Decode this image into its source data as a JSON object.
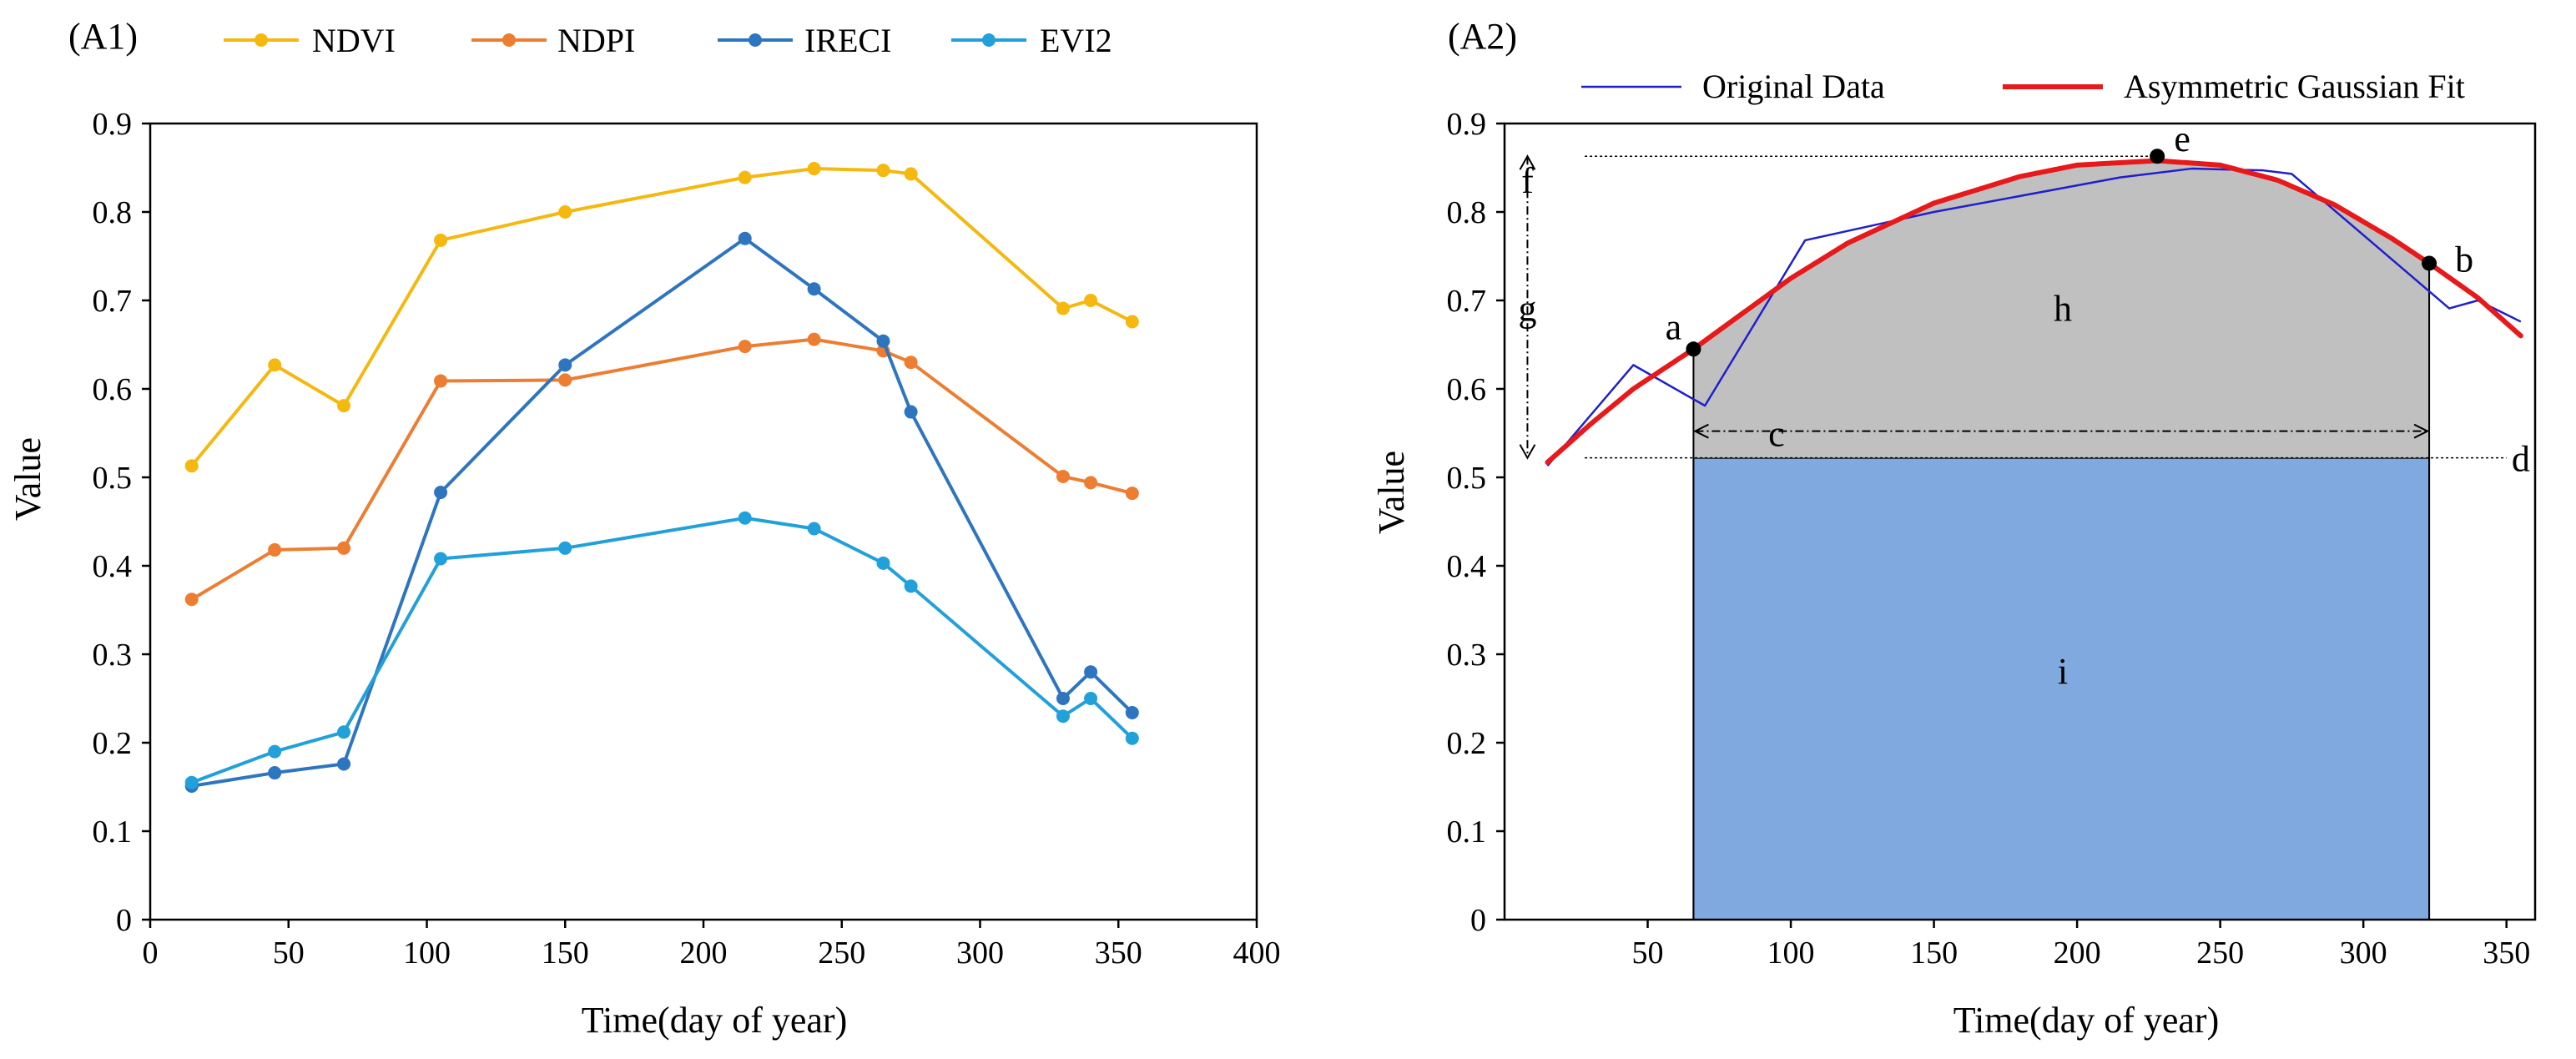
{
  "chart_data": [
    {
      "panel_label": "(A1)",
      "type": "line",
      "xlabel": "Time(day of year)",
      "ylabel": "Value",
      "xlim": [
        0,
        400
      ],
      "ylim": [
        0,
        0.9
      ],
      "xticks": [
        "0",
        "50",
        "100",
        "150",
        "200",
        "250",
        "300",
        "350",
        "400"
      ],
      "yticks": [
        "0",
        "0.1",
        "0.2",
        "0.3",
        "0.4",
        "0.5",
        "0.6",
        "0.7",
        "0.8",
        "0.9"
      ],
      "legend_position": "top",
      "x": [
        15,
        45,
        70,
        105,
        150,
        215,
        240,
        265,
        275,
        330,
        340,
        355
      ],
      "series": [
        {
          "name": "NDVI",
          "color": "#f5b80f",
          "values": [
            0.513,
            0.627,
            0.581,
            0.768,
            0.8,
            0.839,
            0.849,
            0.847,
            0.843,
            0.691,
            0.7,
            0.676
          ]
        },
        {
          "name": "NDPI",
          "color": "#ed7d31",
          "values": [
            0.362,
            0.418,
            0.42,
            0.609,
            0.61,
            0.648,
            0.656,
            0.643,
            0.63,
            0.501,
            0.494,
            0.482
          ]
        },
        {
          "name": "IRECI",
          "color": "#2e75c0",
          "values": [
            0.151,
            0.166,
            0.176,
            0.483,
            0.627,
            0.77,
            0.713,
            0.654,
            0.574,
            0.25,
            0.28,
            0.234
          ]
        },
        {
          "name": "EVI2",
          "color": "#22a0da",
          "values": [
            0.155,
            0.19,
            0.212,
            0.408,
            0.42,
            0.454,
            0.442,
            0.403,
            0.377,
            0.23,
            0.25,
            0.205
          ]
        }
      ]
    },
    {
      "panel_label": "(A2)",
      "type": "line",
      "xlabel": "Time(day of year)",
      "ylabel": "Value",
      "xlim": [
        0,
        360
      ],
      "ylim": [
        0,
        0.9
      ],
      "xticks": [
        "50",
        "100",
        "150",
        "200",
        "250",
        "300",
        "350"
      ],
      "yticks": [
        "0",
        "0.1",
        "0.2",
        "0.3",
        "0.4",
        "0.5",
        "0.6",
        "0.7",
        "0.8",
        "0.9"
      ],
      "legend_position": "top",
      "series": [
        {
          "name": "Original Data",
          "color": "#1f1fcc",
          "x": [
            15,
            45,
            70,
            105,
            150,
            215,
            240,
            265,
            275,
            330,
            340,
            355
          ],
          "values": [
            0.513,
            0.627,
            0.581,
            0.768,
            0.8,
            0.839,
            0.849,
            0.847,
            0.843,
            0.691,
            0.7,
            0.676
          ]
        },
        {
          "name": "Asymmetric Gaussian Fit",
          "color": "#e8191a",
          "x": [
            15,
            30,
            45,
            66,
            80,
            100,
            120,
            150,
            180,
            200,
            228,
            250,
            270,
            290,
            310,
            323,
            340,
            355
          ],
          "values": [
            0.517,
            0.56,
            0.6,
            0.645,
            0.678,
            0.725,
            0.765,
            0.81,
            0.84,
            0.853,
            0.858,
            0.853,
            0.836,
            0.808,
            0.77,
            0.742,
            0.703,
            0.66
          ]
        }
      ],
      "baseline": 0.522,
      "season_start_day": 66,
      "season_end_day": 323,
      "annotations": [
        {
          "label": "a",
          "x": 66,
          "y": 0.645
        },
        {
          "label": "b",
          "x": 323,
          "y": 0.742
        },
        {
          "label": "c",
          "x": 95,
          "y": 0.522
        },
        {
          "label": "d",
          "x": 355,
          "y": 0.522
        },
        {
          "label": "e",
          "x": 228,
          "y": 0.863
        },
        {
          "label": "f",
          "x": 8,
          "y": 0.863
        },
        {
          "label": "g",
          "x": 8,
          "y": 0.69
        },
        {
          "label": "h",
          "x": 195,
          "y": 0.69
        },
        {
          "label": "i",
          "x": 195,
          "y": 0.28
        }
      ],
      "region_colors": {
        "h": "#c0c0c0",
        "i": "#80aadf"
      }
    }
  ]
}
